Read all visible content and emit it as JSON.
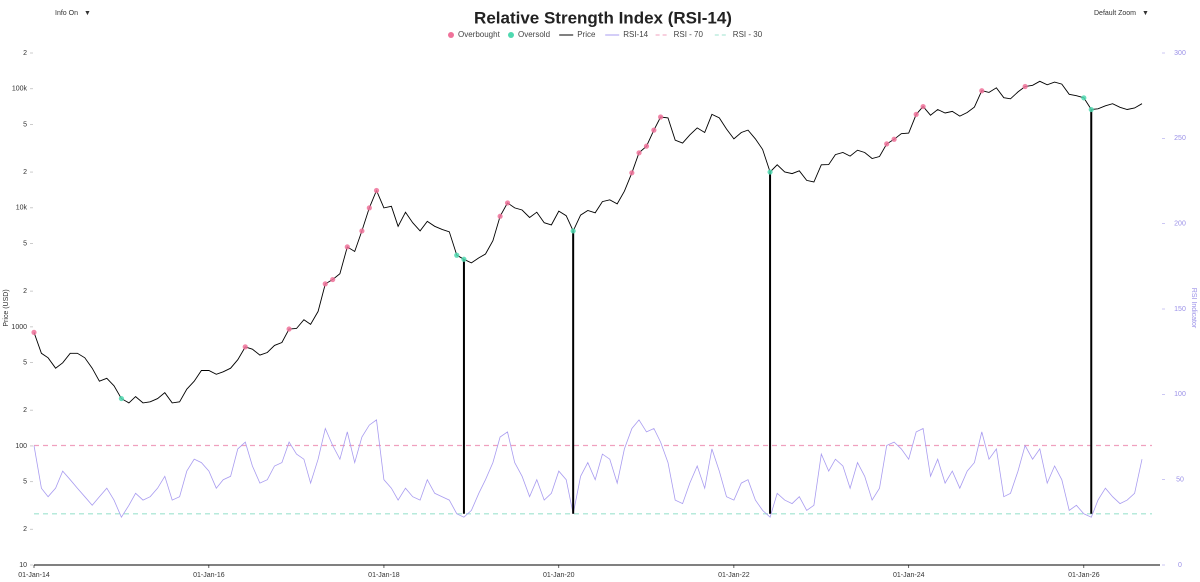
{
  "ui": {
    "info_toggle": "Info On",
    "info_arrow": "▼",
    "zoom_select": "Default Zoom",
    "zoom_arrow": "▼"
  },
  "chart_data": {
    "type": "line",
    "title": "Relative Strength Index (RSI-14)",
    "y_label": "Price (USD)",
    "y2_label": "RSI Indicator",
    "log_scale_y": true,
    "legend": "top",
    "overbought": {
      "name": "Overbought",
      "color": "#f0729a",
      "threshold": 70
    },
    "oversold": {
      "name": "Oversold",
      "color": "#4fd9b0",
      "threshold": 30
    },
    "reference_lines": [
      {
        "name": "RSI - 70",
        "value": 70,
        "color": "#f0a0be",
        "axis": "y2"
      },
      {
        "name": "RSI - 30",
        "value": 30,
        "color": "#9fe3cf",
        "axis": "y2"
      }
    ],
    "annotations": {
      "color": "#000000",
      "x": [
        "2018-12-01",
        "2020-03-01",
        "2022-06-01",
        "2026-02-01"
      ]
    },
    "x": [
      "2014-01-01",
      "2014-02-01",
      "2014-03-01",
      "2014-04-01",
      "2014-05-01",
      "2014-06-01",
      "2014-07-01",
      "2014-08-01",
      "2014-09-01",
      "2014-10-01",
      "2014-11-01",
      "2014-12-01",
      "2015-01-01",
      "2015-02-01",
      "2015-03-01",
      "2015-04-01",
      "2015-05-01",
      "2015-06-01",
      "2015-07-01",
      "2015-08-01",
      "2015-09-01",
      "2015-10-01",
      "2015-11-01",
      "2015-12-01",
      "2016-01-01",
      "2016-02-01",
      "2016-03-01",
      "2016-04-01",
      "2016-05-01",
      "2016-06-01",
      "2016-07-01",
      "2016-08-01",
      "2016-09-01",
      "2016-10-01",
      "2016-11-01",
      "2016-12-01",
      "2017-01-01",
      "2017-02-01",
      "2017-03-01",
      "2017-04-01",
      "2017-05-01",
      "2017-06-01",
      "2017-07-01",
      "2017-08-01",
      "2017-09-01",
      "2017-10-01",
      "2017-11-01",
      "2017-12-01",
      "2018-01-01",
      "2018-02-01",
      "2018-03-01",
      "2018-04-01",
      "2018-05-01",
      "2018-06-01",
      "2018-07-01",
      "2018-08-01",
      "2018-09-01",
      "2018-10-01",
      "2018-11-01",
      "2018-12-01",
      "2019-01-01",
      "2019-02-01",
      "2019-03-01",
      "2019-04-01",
      "2019-05-01",
      "2019-06-01",
      "2019-07-01",
      "2019-08-01",
      "2019-09-01",
      "2019-10-01",
      "2019-11-01",
      "2019-12-01",
      "2020-01-01",
      "2020-02-01",
      "2020-03-01",
      "2020-04-01",
      "2020-05-01",
      "2020-06-01",
      "2020-07-01",
      "2020-08-01",
      "2020-09-01",
      "2020-10-01",
      "2020-11-01",
      "2020-12-01",
      "2021-01-01",
      "2021-02-01",
      "2021-03-01",
      "2021-04-01",
      "2021-05-01",
      "2021-06-01",
      "2021-07-01",
      "2021-08-01",
      "2021-09-01",
      "2021-10-01",
      "2021-11-01",
      "2021-12-01",
      "2022-01-01",
      "2022-02-01",
      "2022-03-01",
      "2022-04-01",
      "2022-05-01",
      "2022-06-01",
      "2022-07-01",
      "2022-08-01",
      "2022-09-01",
      "2022-10-01",
      "2022-11-01",
      "2022-12-01",
      "2023-01-01",
      "2023-02-01",
      "2023-03-01",
      "2023-04-01",
      "2023-05-01",
      "2023-06-01",
      "2023-07-01",
      "2023-08-01",
      "2023-09-01",
      "2023-10-01",
      "2023-11-01",
      "2023-12-01",
      "2024-01-01",
      "2024-02-01",
      "2024-03-01",
      "2024-04-01",
      "2024-05-01",
      "2024-06-01",
      "2024-07-01",
      "2024-08-01",
      "2024-09-01",
      "2024-10-01",
      "2024-11-01",
      "2024-12-01",
      "2025-01-01",
      "2025-02-01",
      "2025-03-01",
      "2025-04-01",
      "2025-05-01",
      "2025-06-01",
      "2025-07-01",
      "2025-08-01",
      "2025-09-01",
      "2025-10-01",
      "2025-11-01",
      "2025-12-01",
      "2026-01-01",
      "2026-02-01",
      "2026-03-01",
      "2026-04-01",
      "2026-05-01",
      "2026-06-01",
      "2026-07-01",
      "2026-08-01",
      "2026-09-01"
    ],
    "series": [
      {
        "name": "Price",
        "color": "#000000",
        "axis": "y",
        "values": [
          900,
          600,
          550,
          450,
          500,
          600,
          600,
          550,
          450,
          350,
          370,
          320,
          250,
          230,
          260,
          230,
          235,
          250,
          280,
          230,
          235,
          300,
          350,
          430,
          430,
          400,
          420,
          450,
          530,
          680,
          650,
          580,
          610,
          700,
          740,
          960,
          970,
          1150,
          1050,
          1350,
          2300,
          2500,
          2800,
          4700,
          4300,
          6400,
          10000,
          14000,
          10000,
          10300,
          7000,
          9200,
          7500,
          6400,
          7700,
          7000,
          6600,
          6300,
          4000,
          3700,
          3450,
          3800,
          4100,
          5300,
          8500,
          11000,
          10000,
          9600,
          8300,
          9200,
          7500,
          7200,
          9400,
          8600,
          6400,
          8700,
          9500,
          9100,
          11300,
          11700,
          10800,
          13800,
          19700,
          29000,
          33000,
          45000,
          58000,
          57000,
          37000,
          35000,
          41000,
          47000,
          43000,
          61000,
          57000,
          46000,
          38000,
          43000,
          45000,
          38000,
          31000,
          20000,
          23000,
          20000,
          19400,
          20500,
          17000,
          16500,
          23000,
          23100,
          28000,
          29200,
          27200,
          30500,
          29200,
          26000,
          27000,
          34500,
          37700,
          42000,
          42500,
          61000,
          71000,
          60000,
          67000,
          62700,
          64600,
          59000,
          63300,
          70200,
          96400,
          93400,
          102000,
          84300,
          82500,
          94200,
          104600,
          107100,
          115700,
          108200,
          114000,
          109500,
          90000,
          87500,
          84000,
          67000,
          68000,
          72000,
          75000,
          70000,
          67000,
          69000,
          75000
        ]
      },
      {
        "name": "RSI-14",
        "color": "#a99cf0",
        "axis": "y2",
        "values": [
          70,
          45,
          40,
          45,
          55,
          50,
          45,
          40,
          35,
          40,
          45,
          38,
          28,
          35,
          42,
          38,
          40,
          45,
          52,
          38,
          40,
          55,
          62,
          60,
          55,
          45,
          50,
          52,
          68,
          72,
          58,
          48,
          50,
          58,
          60,
          72,
          65,
          62,
          48,
          62,
          80,
          70,
          62,
          78,
          60,
          75,
          82,
          85,
          50,
          45,
          38,
          45,
          40,
          38,
          50,
          42,
          40,
          38,
          30,
          28,
          32,
          42,
          50,
          60,
          75,
          78,
          60,
          52,
          40,
          50,
          38,
          42,
          55,
          50,
          30,
          52,
          60,
          50,
          65,
          62,
          48,
          68,
          80,
          85,
          78,
          80,
          72,
          60,
          38,
          36,
          48,
          58,
          45,
          68,
          55,
          40,
          38,
          48,
          50,
          38,
          32,
          28,
          42,
          38,
          36,
          40,
          32,
          35,
          65,
          55,
          62,
          58,
          45,
          60,
          52,
          38,
          45,
          70,
          72,
          68,
          62,
          78,
          80,
          52,
          62,
          48,
          55,
          45,
          55,
          60,
          78,
          62,
          68,
          40,
          42,
          55,
          70,
          62,
          68,
          48,
          58,
          50,
          32,
          35,
          30,
          28,
          38,
          45,
          40,
          36,
          38,
          42,
          62
        ]
      }
    ],
    "xlim": [
      "2014-01-01",
      "2026-11-15"
    ],
    "xticks": [
      {
        "value": "2014-01-01",
        "label": "01-Jan-14"
      },
      {
        "value": "2016-01-01",
        "label": "01-Jan-16"
      },
      {
        "value": "2018-01-01",
        "label": "01-Jan-18"
      },
      {
        "value": "2020-01-01",
        "label": "01-Jan-20"
      },
      {
        "value": "2022-01-01",
        "label": "01-Jan-22"
      },
      {
        "value": "2024-01-01",
        "label": "01-Jan-24"
      },
      {
        "value": "2026-01-01",
        "label": "01-Jan-26"
      }
    ],
    "ylim": [
      10,
      200000
    ],
    "yticks": [
      10,
      {
        "value": 20,
        "label": "2"
      },
      {
        "value": 50,
        "label": "5"
      },
      100,
      {
        "value": 200,
        "label": "2"
      },
      {
        "value": 500,
        "label": "5"
      },
      1000,
      {
        "value": 2000,
        "label": "2"
      },
      {
        "value": 5000,
        "label": "5"
      },
      {
        "value": 10000,
        "label": "10k"
      },
      {
        "value": 20000,
        "label": "2"
      },
      {
        "value": 50000,
        "label": "5"
      },
      {
        "value": 100000,
        "label": "100k"
      },
      {
        "value": 200000,
        "label": "2"
      }
    ],
    "y2lim": [
      0,
      300
    ],
    "y2ticks": [
      0,
      50,
      100,
      150,
      200,
      250,
      300
    ],
    "y2_color": "#9a90e8"
  }
}
